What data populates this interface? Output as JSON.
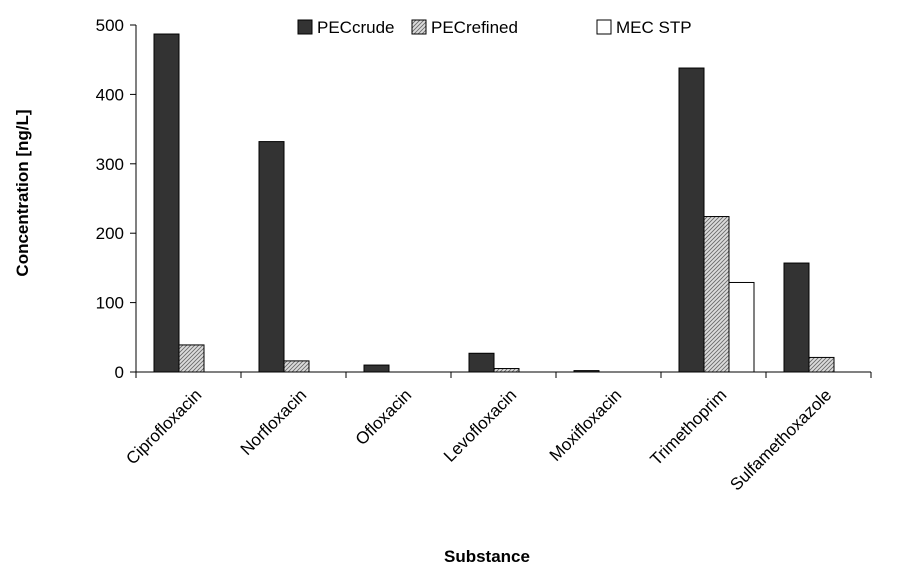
{
  "chart_data": {
    "type": "bar",
    "title": "",
    "xlabel": "Substance",
    "ylabel": "Concentration [ng/L]",
    "ylim": [
      0,
      500
    ],
    "yticks": [
      0,
      100,
      200,
      300,
      400,
      500
    ],
    "categories": [
      "Ciprofloxacin",
      "Norfloxacin",
      "Ofloxacin",
      "Levofloxacin",
      "Moxifloxacin",
      "Trimethoprim",
      "Sulfamethoxazole"
    ],
    "series": [
      {
        "name": "PECcrude",
        "color": "#333333",
        "pattern": "solid",
        "values": [
          487,
          332,
          10,
          27,
          2,
          438,
          157
        ]
      },
      {
        "name": "PECrefined",
        "color": "#d9d9d9",
        "pattern": "hatched",
        "values": [
          39,
          16,
          0,
          5,
          0,
          224,
          21
        ]
      },
      {
        "name": "MEC STP",
        "color": "#ffffff",
        "pattern": "open",
        "values": [
          0,
          0,
          0,
          0,
          0,
          129,
          0
        ]
      }
    ],
    "legend_position": "top-center",
    "grid": false
  }
}
